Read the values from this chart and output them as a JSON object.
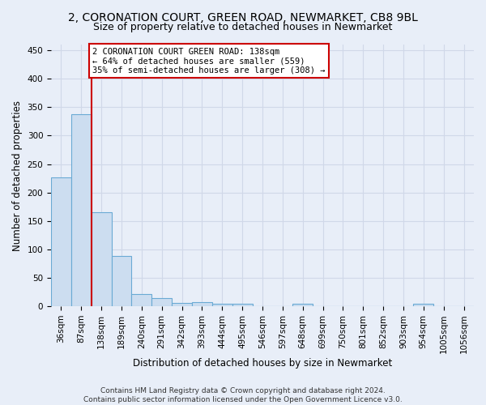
{
  "title": "2, CORONATION COURT, GREEN ROAD, NEWMARKET, CB8 9BL",
  "subtitle": "Size of property relative to detached houses in Newmarket",
  "xlabel": "Distribution of detached houses by size in Newmarket",
  "ylabel": "Number of detached properties",
  "bar_labels": [
    "36sqm",
    "87sqm",
    "138sqm",
    "189sqm",
    "240sqm",
    "291sqm",
    "342sqm",
    "393sqm",
    "444sqm",
    "495sqm",
    "546sqm",
    "597sqm",
    "648sqm",
    "699sqm",
    "750sqm",
    "801sqm",
    "852sqm",
    "903sqm",
    "954sqm",
    "1005sqm",
    "1056sqm"
  ],
  "bar_values": [
    227,
    337,
    166,
    89,
    21,
    15,
    6,
    7,
    5,
    5,
    0,
    0,
    5,
    0,
    0,
    0,
    0,
    0,
    4,
    0,
    0
  ],
  "bar_color": "#ccddf0",
  "bar_edge_color": "#6aaad4",
  "vline_x_index": 1,
  "vline_color": "#cc0000",
  "ylim": [
    0,
    460
  ],
  "yticks": [
    0,
    50,
    100,
    150,
    200,
    250,
    300,
    350,
    400,
    450
  ],
  "annotation_text": "2 CORONATION COURT GREEN ROAD: 138sqm\n← 64% of detached houses are smaller (559)\n35% of semi-detached houses are larger (308) →",
  "annotation_box_color": "#ffffff",
  "annotation_border_color": "#cc0000",
  "footer_text": "Contains HM Land Registry data © Crown copyright and database right 2024.\nContains public sector information licensed under the Open Government Licence v3.0.",
  "background_color": "#e8eef8",
  "grid_color": "#d0d8e8",
  "title_fontsize": 10,
  "subtitle_fontsize": 9,
  "axis_label_fontsize": 8.5,
  "tick_fontsize": 7.5,
  "footer_fontsize": 6.5
}
